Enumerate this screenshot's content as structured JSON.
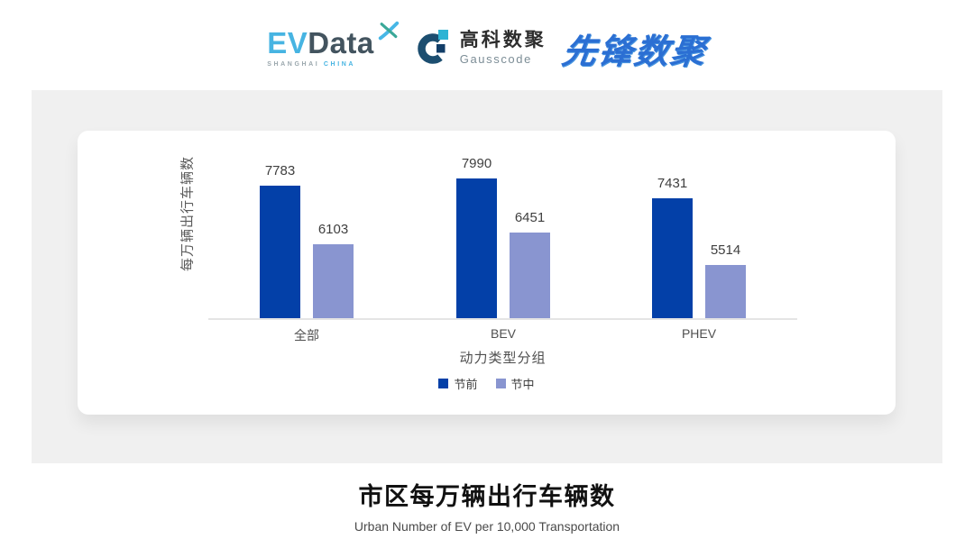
{
  "header": {
    "logos": {
      "evdata": {
        "ev": "EV",
        "data": "Data",
        "tagline_left": "SHANGHAI",
        "tagline_right": "CHINA"
      },
      "gausscode": {
        "name_cn": "高科数聚",
        "name_en": "Gausscode"
      },
      "pioneer": {
        "name_cn": "先锋数聚"
      }
    }
  },
  "chart_data": {
    "type": "bar",
    "categories": [
      "全部",
      "BEV",
      "PHEV"
    ],
    "series": [
      {
        "name": "节前",
        "color": "#0340a8",
        "values": [
          7783,
          7990,
          7431
        ]
      },
      {
        "name": "节中",
        "color": "#8995d0",
        "values": [
          6103,
          6451,
          5514
        ]
      }
    ],
    "ylabel": "每万辆出行车辆数",
    "xlabel": "动力类型分组",
    "ylim": [
      4000,
      8150
    ],
    "grid": false,
    "legend_position": "bottom",
    "value_labels": true
  },
  "caption": {
    "title": "市区每万辆出行车辆数",
    "subtitle": "Urban Number of EV per 10,000 Transportation"
  }
}
